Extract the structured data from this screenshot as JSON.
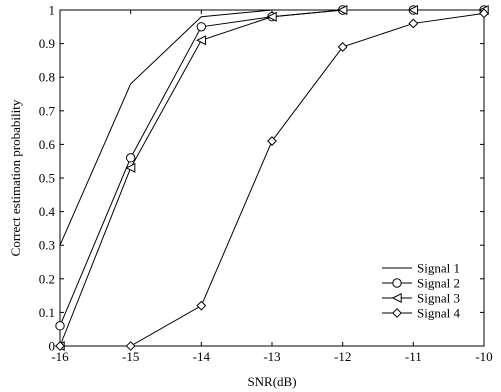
{
  "chart_data": {
    "type": "line",
    "title": "",
    "xlabel": "SNR(dB)",
    "ylabel": "Correct estimation probability",
    "xlim": [
      -16,
      -10
    ],
    "ylim": [
      0,
      1
    ],
    "x_ticks": [
      "-16",
      "-15",
      "-14",
      "-13",
      "-12",
      "-11",
      "-10"
    ],
    "y_ticks": [
      "0",
      "0.1",
      "0.2",
      "0.3",
      "0.4",
      "0.5",
      "0.6",
      "0.7",
      "0.8",
      "0.9",
      "1"
    ],
    "grid": false,
    "legend_position": "bottom-right",
    "x": [
      -16,
      -15,
      -14,
      -13,
      -12,
      -11,
      -10
    ],
    "series": [
      {
        "name": "Signal 1",
        "marker": "none",
        "values": [
          0.3,
          0.78,
          0.98,
          1.0,
          1.0,
          1.0,
          1.0
        ]
      },
      {
        "name": "Signal 2",
        "marker": "circle",
        "values": [
          0.06,
          0.56,
          0.95,
          0.98,
          1.0,
          1.0,
          1.0
        ]
      },
      {
        "name": "Signal 3",
        "marker": "triangle-left",
        "values": [
          0.0,
          0.53,
          0.91,
          0.98,
          1.0,
          1.0,
          1.0
        ]
      },
      {
        "name": "Signal 4",
        "marker": "diamond",
        "values": [
          0.0,
          0.0,
          0.12,
          0.61,
          0.89,
          0.96,
          0.99
        ]
      }
    ],
    "line_color": "#000000"
  }
}
